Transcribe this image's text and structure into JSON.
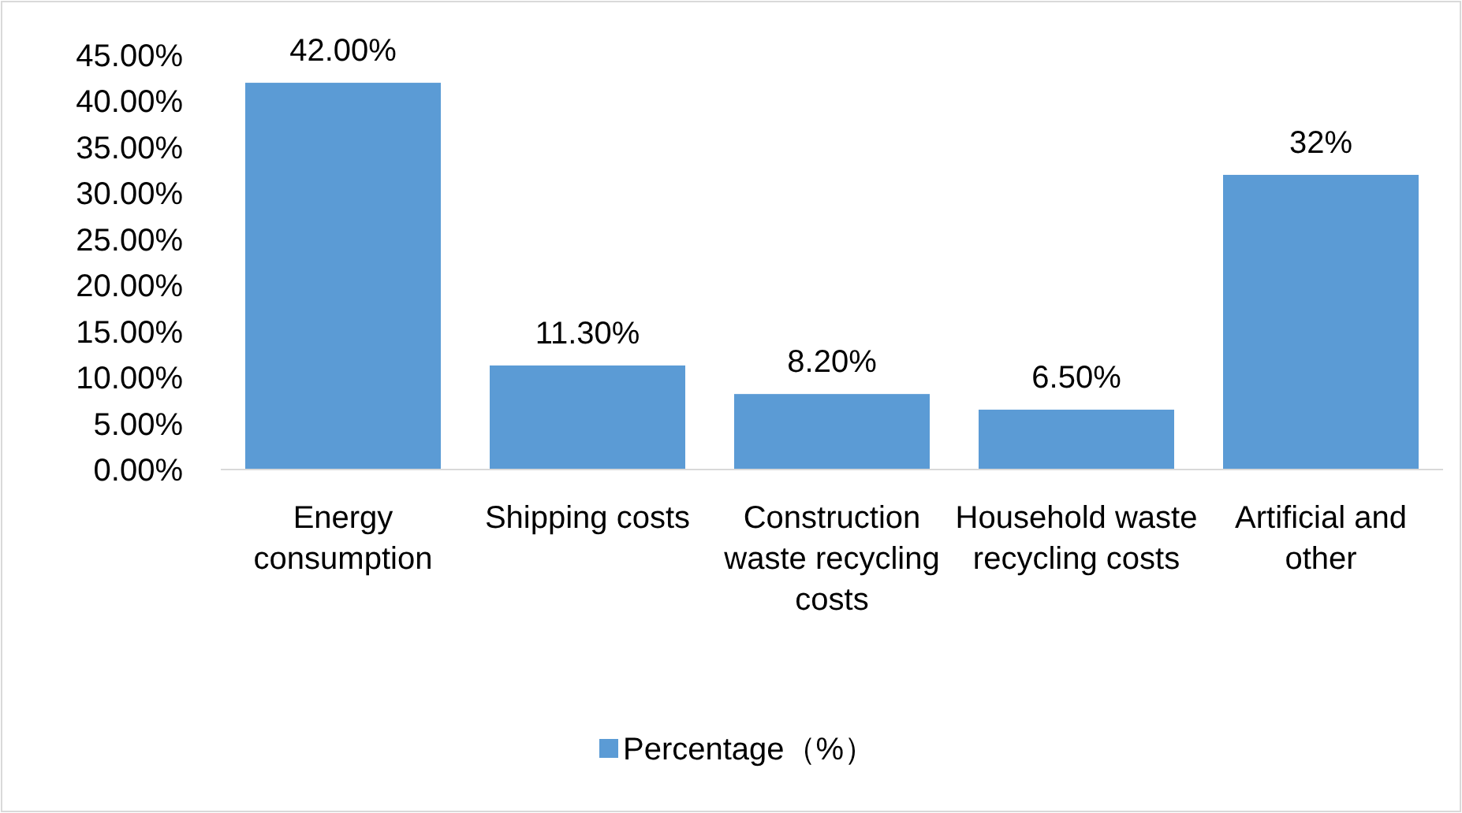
{
  "chart_data": {
    "type": "bar",
    "categories": [
      "Energy consumption",
      "Shipping costs",
      "Construction waste recycling costs",
      "Household waste recycling costs",
      "Artificial and other"
    ],
    "series": [
      {
        "name": "Percentage（%）",
        "color": "#5b9bd5",
        "values": [
          42,
          11.3,
          8.2,
          6.5,
          32
        ],
        "value_labels": [
          "42.00%",
          "11.30%",
          "8.20%",
          "6.50%",
          "32%"
        ]
      }
    ],
    "ylim": [
      0,
      45
    ],
    "yticks": [
      {
        "value": 0,
        "label": "0.00%"
      },
      {
        "value": 5,
        "label": "5.00%"
      },
      {
        "value": 10,
        "label": "10.00%"
      },
      {
        "value": 15,
        "label": "15.00%"
      },
      {
        "value": 20,
        "label": "20.00%"
      },
      {
        "value": 25,
        "label": "25.00%"
      },
      {
        "value": 30,
        "label": "30.00%"
      },
      {
        "value": 35,
        "label": "35.00%"
      },
      {
        "value": 40,
        "label": "40.00%"
      },
      {
        "value": 45,
        "label": "45.00%"
      }
    ],
    "legend": "bottom"
  }
}
